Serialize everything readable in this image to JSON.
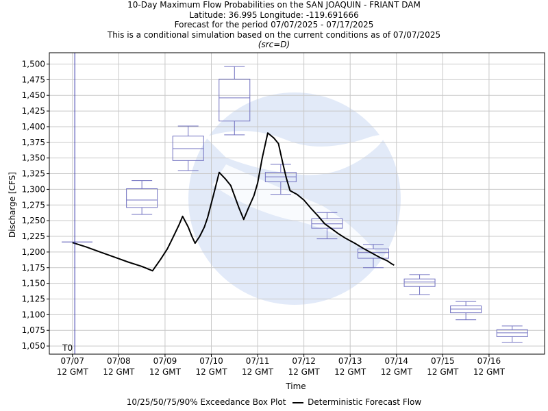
{
  "chart_data": {
    "type": "box",
    "title_lines": [
      "10-Day Maximum Flow Probabilities on the SAN JOAQUIN - FRIANT DAM",
      "Latitude: 36.995 Longitude: -119.691666",
      "Forecast for the period 07/07/2025 - 07/17/2025",
      "This is a conditional simulation based on the current conditions as of 07/07/2025"
    ],
    "subtitle": "(src=D)",
    "xlabel": "Time",
    "ylabel": "Discharge [CFS]",
    "x_tick_labels": [
      [
        "07/07",
        "12 GMT"
      ],
      [
        "07/08",
        "12 GMT"
      ],
      [
        "07/09",
        "12 GMT"
      ],
      [
        "07/10",
        "12 GMT"
      ],
      [
        "07/11",
        "12 GMT"
      ],
      [
        "07/12",
        "12 GMT"
      ],
      [
        "07/13",
        "12 GMT"
      ],
      [
        "07/14",
        "12 GMT"
      ],
      [
        "07/15",
        "12 GMT"
      ],
      [
        "07/16",
        "12 GMT"
      ]
    ],
    "y_ticks": [
      "1,050",
      "1,075",
      "1,100",
      "1,125",
      "1,150",
      "1,175",
      "1,200",
      "1,225",
      "1,250",
      "1,275",
      "1,300",
      "1,325",
      "1,350",
      "1,375",
      "1,400",
      "1,425",
      "1,450",
      "1,475",
      "1,500"
    ],
    "y_values": [
      1050,
      1075,
      1100,
      1125,
      1150,
      1175,
      1200,
      1225,
      1250,
      1275,
      1300,
      1325,
      1350,
      1375,
      1400,
      1425,
      1450,
      1475,
      1500
    ],
    "ylim": [
      1037,
      1518
    ],
    "xlim_days": [
      -0.5,
      10.2
    ],
    "t0_label": "T0",
    "t0_day": 0.05,
    "grid": true,
    "legend_position": "bottom",
    "legend": {
      "box_label": "10/25/50/75/90% Exceedance Box Plot",
      "line_label": "Deterministic Forecast Flow"
    },
    "colors": {
      "box": "#7070c0",
      "line": "#000000",
      "t0": "#3333aa",
      "grid": "#c8c8c8",
      "watermark": "#dfe8f8"
    },
    "boxes": [
      {
        "day": 0.1,
        "p10": 1216,
        "p25": 1216,
        "p50": 1216,
        "p75": 1216,
        "p90": 1216
      },
      {
        "day": 1.5,
        "p10": 1260,
        "p25": 1271,
        "p50": 1283,
        "p75": 1301,
        "p90": 1314
      },
      {
        "day": 2.5,
        "p10": 1330,
        "p25": 1346,
        "p50": 1365,
        "p75": 1385,
        "p90": 1401
      },
      {
        "day": 3.5,
        "p10": 1387,
        "p25": 1409,
        "p50": 1446,
        "p75": 1476,
        "p90": 1496
      },
      {
        "day": 4.5,
        "p10": 1292,
        "p25": 1312,
        "p50": 1320,
        "p75": 1327,
        "p90": 1340
      },
      {
        "day": 5.5,
        "p10": 1221,
        "p25": 1238,
        "p50": 1245,
        "p75": 1253,
        "p90": 1263
      },
      {
        "day": 6.5,
        "p10": 1175,
        "p25": 1190,
        "p50": 1199,
        "p75": 1205,
        "p90": 1212
      },
      {
        "day": 7.5,
        "p10": 1132,
        "p25": 1145,
        "p50": 1152,
        "p75": 1157,
        "p90": 1164
      },
      {
        "day": 8.5,
        "p10": 1092,
        "p25": 1103,
        "p50": 1109,
        "p75": 1114,
        "p90": 1121
      },
      {
        "day": 9.5,
        "p10": 1056,
        "p25": 1065,
        "p50": 1071,
        "p75": 1076,
        "p90": 1082
      }
    ],
    "deterministic": [
      [
        0.0,
        1215
      ],
      [
        0.3,
        1208
      ],
      [
        0.6,
        1200
      ],
      [
        0.9,
        1192
      ],
      [
        1.2,
        1184
      ],
      [
        1.5,
        1177
      ],
      [
        1.73,
        1170
      ],
      [
        1.9,
        1188
      ],
      [
        2.05,
        1205
      ],
      [
        2.15,
        1220
      ],
      [
        2.3,
        1243
      ],
      [
        2.38,
        1257
      ],
      [
        2.5,
        1240
      ],
      [
        2.58,
        1225
      ],
      [
        2.65,
        1214
      ],
      [
        2.75,
        1225
      ],
      [
        2.85,
        1240
      ],
      [
        2.92,
        1255
      ],
      [
        3.05,
        1292
      ],
      [
        3.17,
        1327
      ],
      [
        3.3,
        1317
      ],
      [
        3.42,
        1306
      ],
      [
        3.5,
        1290
      ],
      [
        3.6,
        1270
      ],
      [
        3.7,
        1252
      ],
      [
        3.8,
        1270
      ],
      [
        3.92,
        1290
      ],
      [
        4.0,
        1310
      ],
      [
        4.1,
        1350
      ],
      [
        4.22,
        1390
      ],
      [
        4.35,
        1382
      ],
      [
        4.45,
        1373
      ],
      [
        4.55,
        1340
      ],
      [
        4.62,
        1318
      ],
      [
        4.7,
        1298
      ],
      [
        4.85,
        1292
      ],
      [
        5.0,
        1283
      ],
      [
        5.15,
        1270
      ],
      [
        5.3,
        1258
      ],
      [
        5.45,
        1245
      ],
      [
        5.6,
        1237
      ],
      [
        5.75,
        1229
      ],
      [
        5.9,
        1222
      ],
      [
        6.1,
        1214
      ],
      [
        6.3,
        1205
      ],
      [
        6.5,
        1197
      ],
      [
        6.65,
        1191
      ],
      [
        6.8,
        1186
      ],
      [
        6.9,
        1181
      ],
      [
        6.95,
        1179
      ]
    ]
  }
}
